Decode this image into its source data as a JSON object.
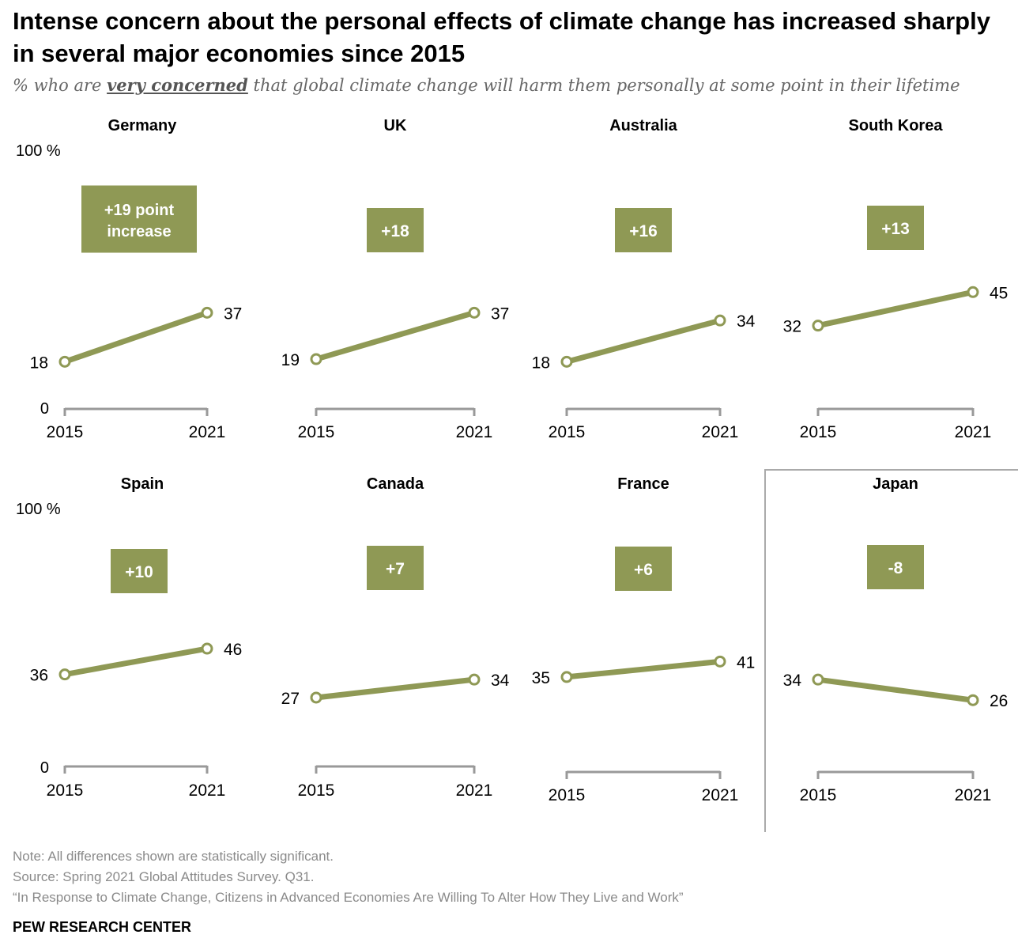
{
  "title": "Intense concern about the personal effects of climate change has increased sharply in several major economies since 2015",
  "subtitle": {
    "prefix": "% who are ",
    "emphasis": "very concerned",
    "suffix": " that global climate change will harm them personally at some point in their lifetime"
  },
  "colors": {
    "line": "#8f9955",
    "badge": "#8f9955",
    "axis": "#999999",
    "separator": "#aaaaaa"
  },
  "chart_data": {
    "type": "line",
    "x": [
      "2015",
      "2021"
    ],
    "ylim": [
      0,
      100
    ],
    "y_tick_labels": {
      "top": "100 %",
      "bottom": "0"
    },
    "panels": [
      {
        "name": "Germany",
        "values": [
          18,
          37
        ],
        "change_label": "+19 point increase"
      },
      {
        "name": "UK",
        "values": [
          19,
          37
        ],
        "change_label": "+18"
      },
      {
        "name": "Australia",
        "values": [
          18,
          34
        ],
        "change_label": "+16"
      },
      {
        "name": "South Korea",
        "values": [
          32,
          45
        ],
        "change_label": "+13"
      },
      {
        "name": "Spain",
        "values": [
          36,
          46
        ],
        "change_label": "+10"
      },
      {
        "name": "Canada",
        "values": [
          27,
          34
        ],
        "change_label": "+7"
      },
      {
        "name": "France",
        "values": [
          35,
          41
        ],
        "change_label": "+6"
      },
      {
        "name": "Japan",
        "values": [
          34,
          26
        ],
        "change_label": "-8"
      }
    ]
  },
  "notes": {
    "note": "Note: All differences shown are statistically significant.",
    "source": "Source: Spring 2021 Global Attitudes Survey. Q31.",
    "report": "“In Response to Climate Change, Citizens in Advanced Economies Are Willing To Alter How They Live and Work”"
  },
  "brand": "PEW RESEARCH CENTER"
}
